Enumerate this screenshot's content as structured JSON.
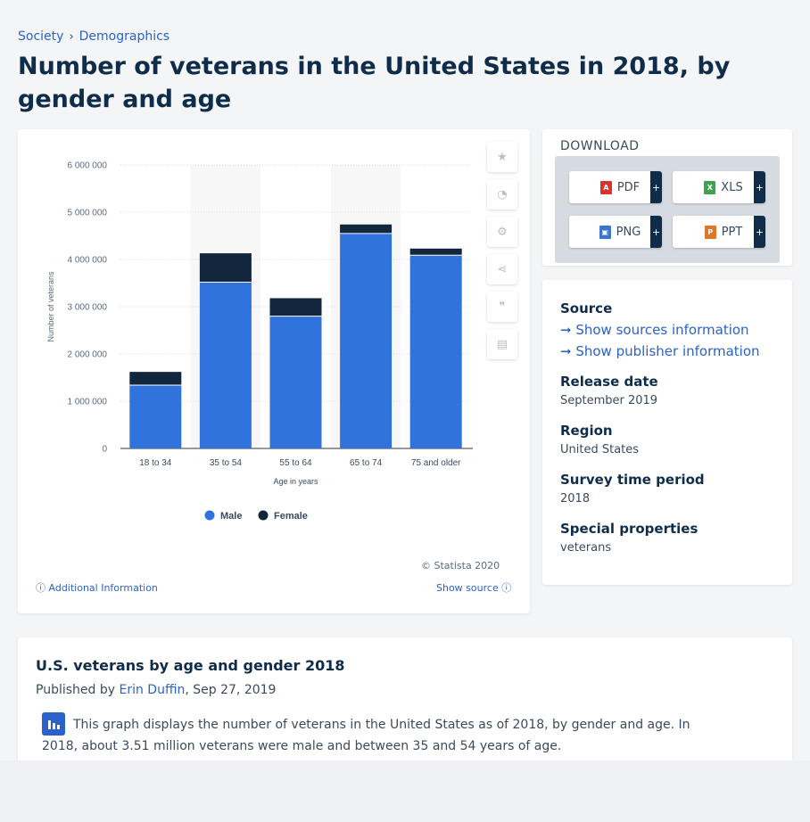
{
  "breadcrumb": [
    "Society",
    "Demographics"
  ],
  "page_title": "Number of veterans in the United States in 2018, by gender and age",
  "chart_data": {
    "type": "bar",
    "stacked": true,
    "categories": [
      "18 to 34",
      "35 to 54",
      "55 to 64",
      "65 to 74",
      "75 and older"
    ],
    "series": [
      {
        "name": "Male",
        "color": "#3173dc",
        "values": [
          1330000,
          3510000,
          2790000,
          4540000,
          4080000
        ]
      },
      {
        "name": "Female",
        "color": "#12263e",
        "values": [
          290000,
          620000,
          390000,
          200000,
          150000
        ]
      }
    ],
    "xlabel": "Age in years",
    "ylabel": "Number of veterans",
    "ylim": [
      0,
      6000000
    ],
    "yticks": [
      "0",
      "1 000 000",
      "2 000 000",
      "3 000 000",
      "4 000 000",
      "5 000 000",
      "6 000 000"
    ],
    "legend": "bottom",
    "grid": true
  },
  "chart_footer": {
    "copyright": "© Statista 2020",
    "additional_info": "Additional Information",
    "show_source": "Show source"
  },
  "download": {
    "title": "DOWNLOAD",
    "buttons": [
      {
        "label": "PDF",
        "icon": "pdf-icon",
        "color": "#d9342b"
      },
      {
        "label": "XLS",
        "icon": "xls-icon",
        "color": "#3fa34d"
      },
      {
        "label": "PNG",
        "icon": "png-icon",
        "color": "#3b77c9"
      },
      {
        "label": "PPT",
        "icon": "ppt-icon",
        "color": "#e0762b"
      }
    ],
    "plus": "+"
  },
  "info": {
    "source_label": "Source",
    "show_sources": "Show sources information",
    "show_publisher": "Show publisher information",
    "release_label": "Release date",
    "release_value": "September 2019",
    "region_label": "Region",
    "region_value": "United States",
    "period_label": "Survey time period",
    "period_value": "2018",
    "special_label": "Special properties",
    "special_value": "veterans"
  },
  "description": {
    "title": "U.S. veterans by age and gender 2018",
    "published_by": "Published by",
    "author": "Erin Duffin",
    "date": ", Sep 27, 2019",
    "text": "This graph displays the number of veterans in the United States as of 2018, by gender and age. In 2018, about 3.51 million veterans were male and between 35 and 54 years of age."
  }
}
